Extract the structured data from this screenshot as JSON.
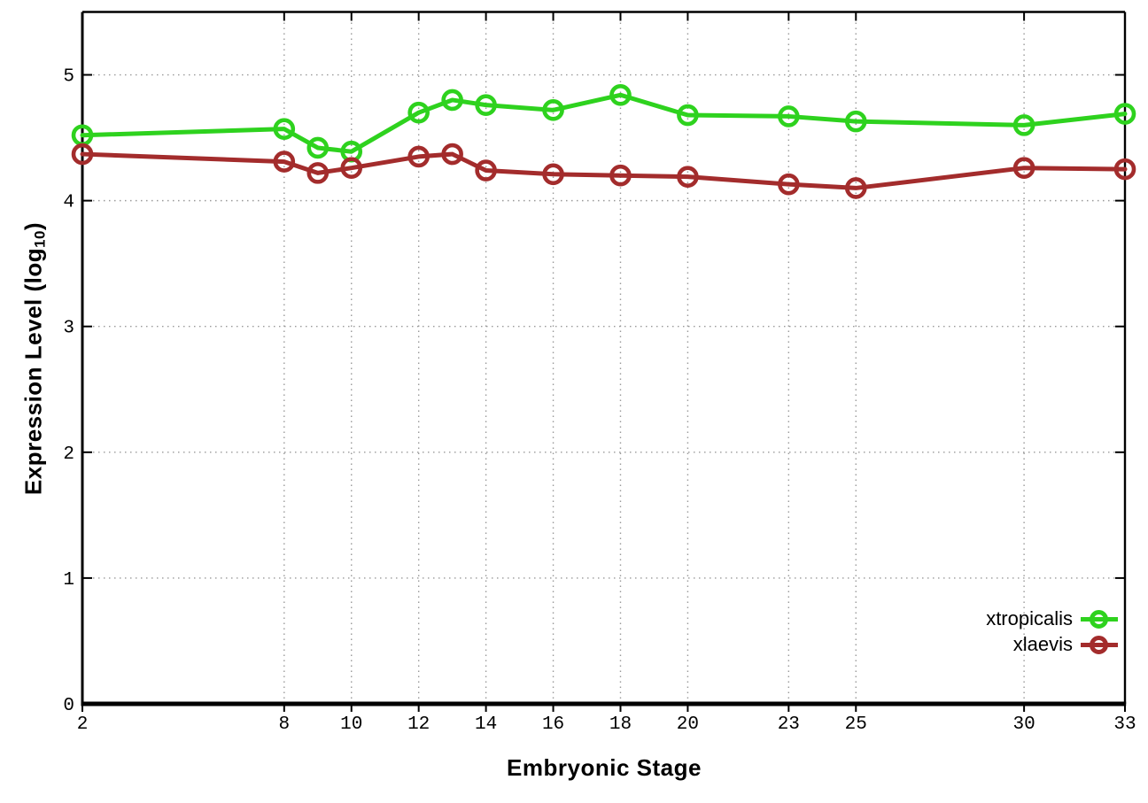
{
  "figure": {
    "xlabel": "Embryonic Stage",
    "ylabel_pre": "Expression Level (log",
    "ylabel_sub": "10",
    "ylabel_post": ")"
  },
  "chart_data": {
    "type": "line",
    "title": "",
    "xlabel": "Embryonic Stage",
    "ylabel": "Expression Level (log10)",
    "x": [
      2,
      8,
      9,
      10,
      12,
      13,
      14,
      16,
      18,
      20,
      23,
      25,
      30,
      33
    ],
    "series": [
      {
        "name": "xtropicalis",
        "color": "#2ed21e",
        "values": [
          4.52,
          4.57,
          4.42,
          4.39,
          4.7,
          4.8,
          4.76,
          4.72,
          4.84,
          4.68,
          4.67,
          4.63,
          4.6,
          4.69
        ]
      },
      {
        "name": "xlaevis",
        "color": "#a32c2c",
        "values": [
          4.37,
          4.31,
          4.22,
          4.26,
          4.35,
          4.37,
          4.24,
          4.21,
          4.2,
          4.19,
          4.13,
          4.1,
          4.26,
          4.25
        ]
      }
    ],
    "xlim": [
      2,
      33
    ],
    "ylim": [
      0,
      5.5
    ],
    "xticks": [
      2,
      8,
      10,
      12,
      14,
      16,
      18,
      20,
      23,
      25,
      30,
      33
    ],
    "yticks": [
      0,
      1,
      2,
      3,
      4,
      5
    ],
    "grid": true,
    "grid_color": "#999999",
    "axis_color": "#000000",
    "marker": "open-circle",
    "legend_position": "bottom-right-inside"
  }
}
